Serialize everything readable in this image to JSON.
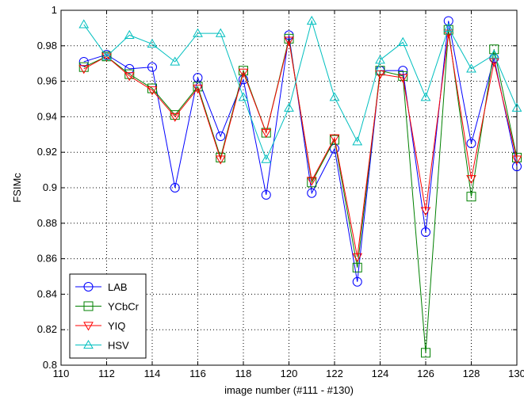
{
  "chart_data": {
    "type": "line",
    "xlabel": "image number (#111 - #130)",
    "ylabel": "FSIMc",
    "xlim": [
      110,
      130
    ],
    "ylim": [
      0.8,
      1.0
    ],
    "xticks": [
      110,
      112,
      114,
      116,
      118,
      120,
      122,
      124,
      126,
      128,
      130
    ],
    "yticks": [
      0.8,
      0.82,
      0.84,
      0.86,
      0.88,
      0.9,
      0.92,
      0.94,
      0.96,
      0.98,
      1.0
    ],
    "ytick_labels": [
      "0.8",
      "0.82",
      "0.84",
      "0.86",
      "0.88",
      "0.9",
      "0.92",
      "0.94",
      "0.96",
      "0.98",
      "1"
    ],
    "grid": true,
    "legend_position": "bottom-left",
    "x": [
      111,
      112,
      113,
      114,
      115,
      116,
      117,
      118,
      119,
      120,
      121,
      122,
      123,
      124,
      125,
      126,
      127,
      128,
      129,
      130
    ],
    "series": [
      {
        "name": "LAB",
        "color": "#0000ff",
        "marker": "circle",
        "values": [
          0.971,
          0.975,
          0.967,
          0.968,
          0.9,
          0.962,
          0.929,
          0.961,
          0.896,
          0.986,
          0.897,
          0.922,
          0.847,
          0.966,
          0.966,
          0.875,
          0.994,
          0.925,
          0.973,
          0.912
        ]
      },
      {
        "name": "YCbCr",
        "color": "#008000",
        "marker": "square",
        "values": [
          0.968,
          0.974,
          0.964,
          0.956,
          0.941,
          0.957,
          0.917,
          0.966,
          0.931,
          0.984,
          0.903,
          0.927,
          0.855,
          0.966,
          0.963,
          0.807,
          0.989,
          0.895,
          0.978,
          0.917
        ]
      },
      {
        "name": "YIQ",
        "color": "#ff0000",
        "marker": "triangle-down",
        "values": [
          0.967,
          0.974,
          0.963,
          0.955,
          0.94,
          0.956,
          0.916,
          0.965,
          0.931,
          0.983,
          0.904,
          0.928,
          0.861,
          0.964,
          0.962,
          0.887,
          0.987,
          0.905,
          0.971,
          0.916
        ]
      },
      {
        "name": "HSV",
        "color": "#00bfbf",
        "marker": "triangle-up",
        "values": [
          0.992,
          0.974,
          0.986,
          0.981,
          0.971,
          0.987,
          0.987,
          0.951,
          0.916,
          0.945,
          0.994,
          0.951,
          0.926,
          0.972,
          0.982,
          0.951,
          0.99,
          0.967,
          0.975,
          0.945
        ]
      }
    ]
  }
}
